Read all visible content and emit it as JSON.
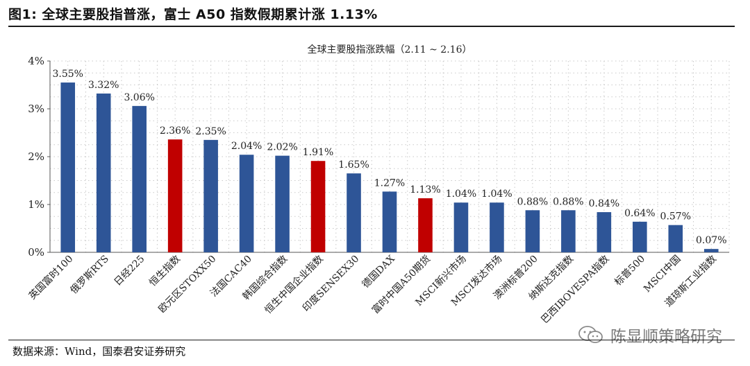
{
  "header": {
    "title": "图1:  全球主要股指普涨，富士 A50 指数假期累计涨 1.13%"
  },
  "footer": {
    "source": "数据来源：Wind，国泰君安证券研究",
    "watermark": "陈显顺策略研究"
  },
  "colors": {
    "blue": "#2E5597",
    "red": "#C00000",
    "grid": "#c8c8c8"
  },
  "chart_data": {
    "type": "bar",
    "title": "全球主要股指涨跌幅（2.11 ~ 2.16）",
    "xlabel": "",
    "ylabel": "",
    "ylim": [
      0,
      4
    ],
    "yticks": [
      "0%",
      "1%",
      "2%",
      "3%",
      "4%"
    ],
    "categories": [
      "英国富时100",
      "俄罗斯RTS",
      "日经225",
      "恒生指数",
      "欧元区STOXX50",
      "法国CAC40",
      "韩国综合指数",
      "恒生中国企业指数",
      "印度SENSEX30",
      "德国DAX",
      "富时中国A50期货",
      "MSCI新兴市场",
      "MSCI发达市场",
      "澳洲标普200",
      "纳斯达克指数",
      "巴西IBOVESPA指数",
      "标普500",
      "MSCI中国",
      "道琼斯工业指数"
    ],
    "values": [
      3.55,
      3.32,
      3.06,
      2.36,
      2.35,
      2.04,
      2.02,
      1.91,
      1.65,
      1.27,
      1.13,
      1.04,
      1.04,
      0.88,
      0.88,
      0.84,
      0.64,
      0.57,
      0.07
    ],
    "labels": [
      "3.55%",
      "3.32%",
      "3.06%",
      "2.36%",
      "2.35%",
      "2.04%",
      "2.02%",
      "1.91%",
      "1.65%",
      "1.27%",
      "1.13%",
      "1.04%",
      "1.04%",
      "0.88%",
      "0.88%",
      "0.84%",
      "0.64%",
      "0.57%",
      "0.07%"
    ],
    "highlight": [
      false,
      false,
      false,
      true,
      false,
      false,
      false,
      true,
      false,
      false,
      true,
      false,
      false,
      false,
      false,
      false,
      false,
      false,
      false
    ],
    "grid": true,
    "legend": "none"
  }
}
